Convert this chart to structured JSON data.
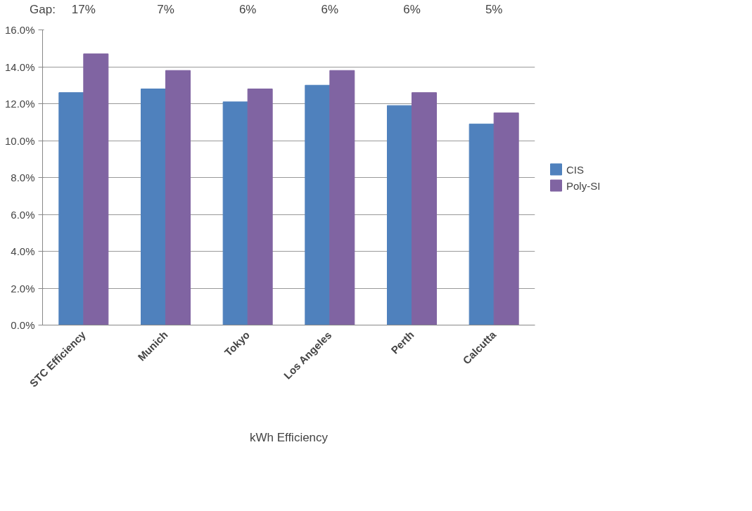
{
  "chart_data": {
    "type": "bar",
    "xlabel": "kWh Efficiency",
    "categories": [
      "STC Efficiency",
      "Munich",
      "Tokyo",
      "Los Angeles",
      "Perth",
      "Calcutta"
    ],
    "series": [
      {
        "name": "CIS",
        "color": "#4f81bd",
        "values": [
          12.6,
          12.8,
          12.1,
          13.0,
          11.9,
          10.9
        ]
      },
      {
        "name": "Poly-SI",
        "color": "#8064a2",
        "values": [
          14.7,
          13.8,
          12.8,
          13.8,
          12.6,
          11.5
        ]
      }
    ],
    "ylim": [
      0,
      16
    ],
    "yticks": [
      {
        "value": 0,
        "label": "0.0%"
      },
      {
        "value": 2,
        "label": "2.0%"
      },
      {
        "value": 4,
        "label": "4.0%"
      },
      {
        "value": 6,
        "label": "6.0%"
      },
      {
        "value": 8,
        "label": "8.0%"
      },
      {
        "value": 10,
        "label": "10.0%"
      },
      {
        "value": 12,
        "label": "12.0%"
      },
      {
        "value": 14,
        "label": "14.0%"
      },
      {
        "value": 16,
        "label": "16.0%"
      }
    ],
    "grid": "y",
    "legend": "right",
    "annotations": [
      "Gap:",
      "17%",
      "7%",
      "6%",
      "6%",
      "6%",
      "5%"
    ]
  }
}
